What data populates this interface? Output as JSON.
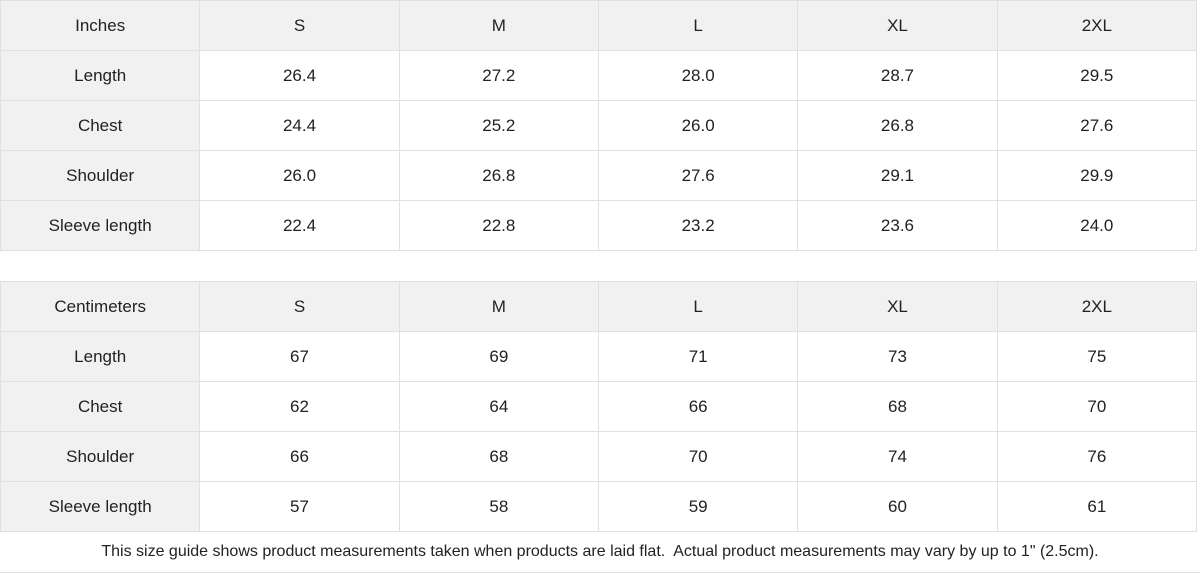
{
  "colors": {
    "header_bg": "#f1f1f1",
    "border": "#e0e0e0",
    "text": "#222222",
    "page_bg": "#ffffff"
  },
  "tables": [
    {
      "unit_label": "Inches",
      "sizes": [
        "S",
        "M",
        "L",
        "XL",
        "2XL"
      ],
      "rows": [
        {
          "label": "Length",
          "values": [
            "26.4",
            "27.2",
            "28.0",
            "28.7",
            "29.5"
          ]
        },
        {
          "label": "Chest",
          "values": [
            "24.4",
            "25.2",
            "26.0",
            "26.8",
            "27.6"
          ]
        },
        {
          "label": "Shoulder",
          "values": [
            "26.0",
            "26.8",
            "27.6",
            "29.1",
            "29.9"
          ]
        },
        {
          "label": "Sleeve length",
          "values": [
            "22.4",
            "22.8",
            "23.2",
            "23.6",
            "24.0"
          ]
        }
      ]
    },
    {
      "unit_label": "Centimeters",
      "sizes": [
        "S",
        "M",
        "L",
        "XL",
        "2XL"
      ],
      "rows": [
        {
          "label": "Length",
          "values": [
            "67",
            "69",
            "71",
            "73",
            "75"
          ]
        },
        {
          "label": "Chest",
          "values": [
            "62",
            "64",
            "66",
            "68",
            "70"
          ]
        },
        {
          "label": "Shoulder",
          "values": [
            "66",
            "68",
            "70",
            "74",
            "76"
          ]
        },
        {
          "label": "Sleeve length",
          "values": [
            "57",
            "58",
            "59",
            "60",
            "61"
          ]
        }
      ]
    }
  ],
  "footer": {
    "note": "This size guide shows product measurements taken when products are laid flat.  Actual product measurements may vary by up to 1\" (2.5cm)."
  }
}
